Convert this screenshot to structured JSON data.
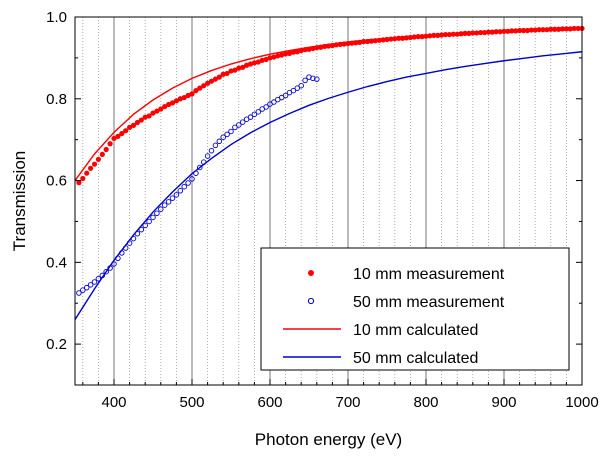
{
  "chart_data": {
    "type": "scatter",
    "title": "",
    "xlabel": "Photon energy (eV)",
    "ylabel": "Transmission",
    "xlim": [
      350,
      1000
    ],
    "ylim": [
      0.1,
      1.0
    ],
    "x_ticks": [
      400,
      500,
      600,
      700,
      800,
      900,
      1000
    ],
    "y_ticks": [
      0.2,
      0.4,
      0.6,
      0.8,
      1.0
    ],
    "y_tick_labels": [
      "0.2",
      "0.4",
      "0.6",
      "0.8",
      "1.0"
    ],
    "grid": "vertical major and minor gridlines",
    "legend_position": "lower-right",
    "colors": {
      "red": "#ff0000",
      "blue": "#0000cc"
    },
    "series": [
      {
        "name": "10 mm measurement",
        "kind": "scatter-filled",
        "color": "#ff0000",
        "x": [
          355,
          360,
          365,
          370,
          375,
          380,
          385,
          390,
          395,
          400,
          405,
          410,
          415,
          420,
          425,
          430,
          435,
          440,
          445,
          450,
          455,
          460,
          465,
          470,
          475,
          480,
          485,
          490,
          495,
          500,
          505,
          510,
          515,
          520,
          525,
          530,
          535,
          540,
          545,
          550,
          555,
          560,
          565,
          570,
          575,
          580,
          585,
          590,
          595,
          600,
          605,
          610,
          615,
          620,
          625,
          630,
          635,
          640,
          645,
          650,
          655,
          660,
          665,
          670,
          675,
          680,
          685,
          690,
          695,
          700,
          705,
          710,
          715,
          720,
          725,
          730,
          735,
          740,
          745,
          750,
          755,
          760,
          765,
          770,
          775,
          780,
          785,
          790,
          795,
          800,
          805,
          810,
          815,
          820,
          825,
          830,
          835,
          840,
          845,
          850,
          855,
          860,
          865,
          870,
          875,
          880,
          885,
          890,
          895,
          900,
          905,
          910,
          915,
          920,
          925,
          930,
          935,
          940,
          945,
          950,
          955,
          960,
          965,
          970,
          975,
          980,
          985,
          990,
          995,
          1000
        ],
        "y": [
          0.595,
          0.605,
          0.618,
          0.63,
          0.64,
          0.652,
          0.664,
          0.676,
          0.69,
          0.703,
          0.708,
          0.715,
          0.722,
          0.73,
          0.735,
          0.742,
          0.748,
          0.755,
          0.758,
          0.765,
          0.77,
          0.775,
          0.781,
          0.786,
          0.79,
          0.795,
          0.8,
          0.803,
          0.808,
          0.812,
          0.82,
          0.826,
          0.832,
          0.838,
          0.843,
          0.848,
          0.853,
          0.86,
          0.862,
          0.868,
          0.87,
          0.875,
          0.877,
          0.882,
          0.885,
          0.888,
          0.89,
          0.894,
          0.896,
          0.9,
          0.902,
          0.905,
          0.907,
          0.91,
          0.911,
          0.914,
          0.915,
          0.918,
          0.92,
          0.921,
          0.923,
          0.925,
          0.926,
          0.928,
          0.929,
          0.93,
          0.932,
          0.933,
          0.934,
          0.935,
          0.936,
          0.937,
          0.938,
          0.94,
          0.94,
          0.941,
          0.942,
          0.943,
          0.944,
          0.945,
          0.946,
          0.947,
          0.948,
          0.948,
          0.949,
          0.95,
          0.951,
          0.952,
          0.952,
          0.953,
          0.954,
          0.955,
          0.955,
          0.956,
          0.957,
          0.957,
          0.958,
          0.958,
          0.959,
          0.96,
          0.96,
          0.961,
          0.961,
          0.962,
          0.962,
          0.963,
          0.963,
          0.964,
          0.964,
          0.965,
          0.965,
          0.966,
          0.966,
          0.967,
          0.967,
          0.967,
          0.968,
          0.968,
          0.969,
          0.969,
          0.969,
          0.97,
          0.97,
          0.97,
          0.971,
          0.971,
          0.971,
          0.972,
          0.972,
          0.972
        ]
      },
      {
        "name": "50 mm measurement",
        "kind": "scatter-open",
        "color": "#0000cc",
        "x": [
          355,
          360,
          365,
          370,
          375,
          380,
          385,
          390,
          395,
          400,
          405,
          410,
          415,
          420,
          425,
          430,
          435,
          440,
          445,
          450,
          455,
          460,
          465,
          470,
          475,
          480,
          485,
          490,
          495,
          500,
          505,
          510,
          515,
          520,
          525,
          530,
          535,
          540,
          545,
          550,
          555,
          560,
          565,
          570,
          575,
          580,
          585,
          590,
          595,
          600,
          605,
          610,
          615,
          620,
          625,
          630,
          635,
          640,
          645,
          650,
          655,
          660
        ],
        "y": [
          0.325,
          0.332,
          0.338,
          0.345,
          0.352,
          0.36,
          0.368,
          0.377,
          0.386,
          0.396,
          0.41,
          0.423,
          0.435,
          0.447,
          0.458,
          0.47,
          0.48,
          0.49,
          0.5,
          0.51,
          0.52,
          0.53,
          0.54,
          0.548,
          0.557,
          0.565,
          0.575,
          0.585,
          0.594,
          0.604,
          0.618,
          0.632,
          0.645,
          0.66,
          0.673,
          0.686,
          0.696,
          0.706,
          0.713,
          0.72,
          0.73,
          0.736,
          0.743,
          0.75,
          0.755,
          0.762,
          0.768,
          0.775,
          0.78,
          0.787,
          0.792,
          0.798,
          0.803,
          0.808,
          0.815,
          0.82,
          0.826,
          0.832,
          0.845,
          0.853,
          0.85,
          0.848
        ]
      },
      {
        "name": "10 mm calculated",
        "kind": "line",
        "color": "#ff0000",
        "x": [
          350,
          375,
          400,
          425,
          450,
          475,
          500,
          525,
          550,
          575,
          600,
          625,
          650,
          675,
          700,
          725,
          750,
          775,
          800,
          825,
          850,
          875,
          900,
          925,
          950,
          975,
          1000
        ],
        "y": [
          0.6,
          0.665,
          0.718,
          0.762,
          0.797,
          0.826,
          0.85,
          0.869,
          0.885,
          0.898,
          0.909,
          0.918,
          0.926,
          0.933,
          0.939,
          0.944,
          0.948,
          0.952,
          0.955,
          0.958,
          0.961,
          0.964,
          0.966,
          0.968,
          0.97,
          0.971,
          0.973
        ]
      },
      {
        "name": "50 mm calculated",
        "kind": "line",
        "color": "#0000cc",
        "x": [
          350,
          375,
          400,
          425,
          450,
          475,
          500,
          525,
          550,
          575,
          600,
          625,
          650,
          675,
          700,
          725,
          750,
          775,
          800,
          825,
          850,
          875,
          900,
          925,
          950,
          975,
          1000
        ],
        "y": [
          0.26,
          0.335,
          0.405,
          0.467,
          0.523,
          0.572,
          0.617,
          0.654,
          0.688,
          0.717,
          0.742,
          0.764,
          0.784,
          0.801,
          0.816,
          0.83,
          0.842,
          0.853,
          0.862,
          0.871,
          0.879,
          0.886,
          0.893,
          0.899,
          0.905,
          0.91,
          0.915
        ]
      }
    ]
  }
}
